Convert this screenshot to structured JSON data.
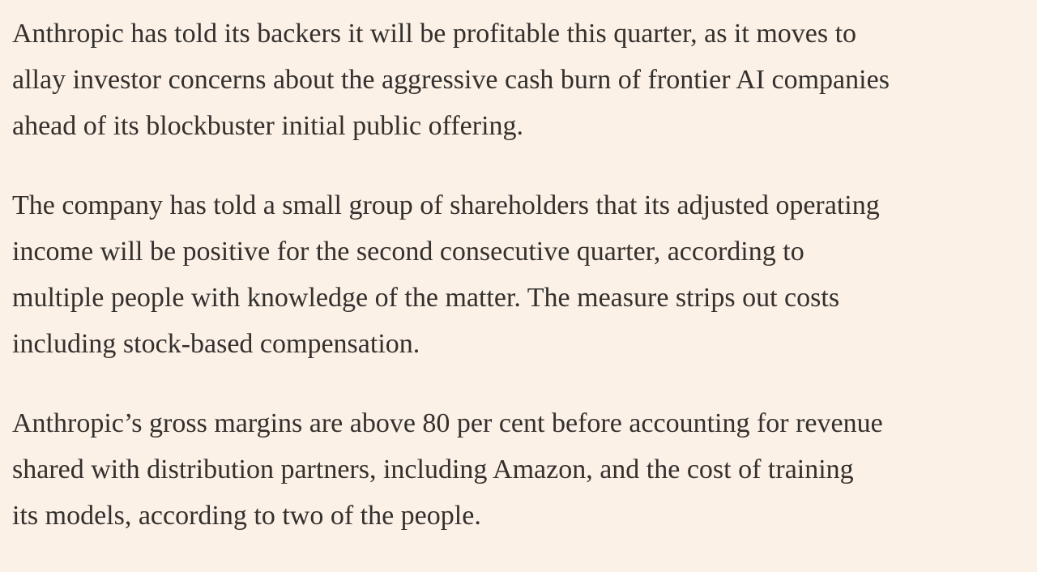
{
  "article": {
    "paragraphs": [
      [
        "Anthropic has told its backers it will be profitable this quarter, as it moves to",
        "allay investor concerns about the aggressive cash burn of frontier AI companies",
        "ahead of its blockbuster initial public offering."
      ],
      [
        "The company has told a small group of shareholders that its adjusted operating",
        "income will be positive for the second consecutive quarter, according to",
        "multiple people with knowledge of the matter. The measure strips out costs",
        "including stock-based compensation."
      ],
      [
        "Anthropic’s gross margins are above 80 per cent before accounting for revenue",
        "shared with distribution partners, including Amazon, and the cost of training",
        "its models, according to two of the people."
      ]
    ]
  }
}
